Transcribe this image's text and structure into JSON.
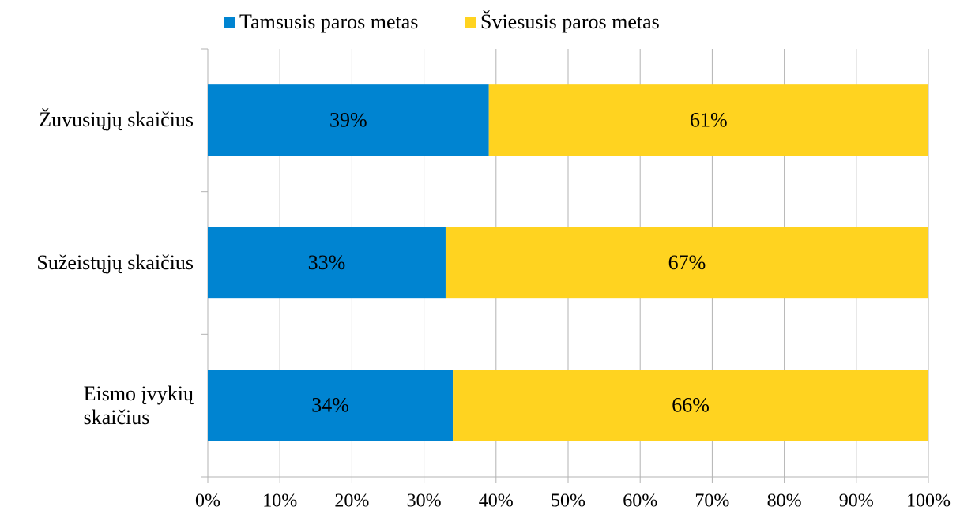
{
  "chart_data": {
    "type": "stacked_barh",
    "categories": [
      "Žuvusiųjų skaičius",
      "Sužeistųjų skaičius",
      "Eismo įvykių\nskaičius"
    ],
    "series": [
      {
        "name": "Tamsusis paros metas",
        "color": "#0084d1",
        "values": [
          39,
          33,
          34
        ],
        "value_labels": [
          "39%",
          "33%",
          "34%"
        ]
      },
      {
        "name": "Šviesusis paros metas",
        "color": "#ffd320",
        "values": [
          61,
          67,
          66
        ],
        "value_labels": [
          "61%",
          "67%",
          "66%"
        ]
      }
    ],
    "xlim": [
      0,
      100
    ],
    "xticks": [
      {
        "value": 0,
        "label": "0%"
      },
      {
        "value": 10,
        "label": "10%"
      },
      {
        "value": 20,
        "label": "20%"
      },
      {
        "value": 30,
        "label": "30%"
      },
      {
        "value": 40,
        "label": "40%"
      },
      {
        "value": 50,
        "label": "50%"
      },
      {
        "value": 60,
        "label": "60%"
      },
      {
        "value": 70,
        "label": "70%"
      },
      {
        "value": 80,
        "label": "80%"
      },
      {
        "value": 90,
        "label": "90%"
      },
      {
        "value": 100,
        "label": "100%"
      }
    ],
    "grid": true,
    "legend": "top"
  }
}
